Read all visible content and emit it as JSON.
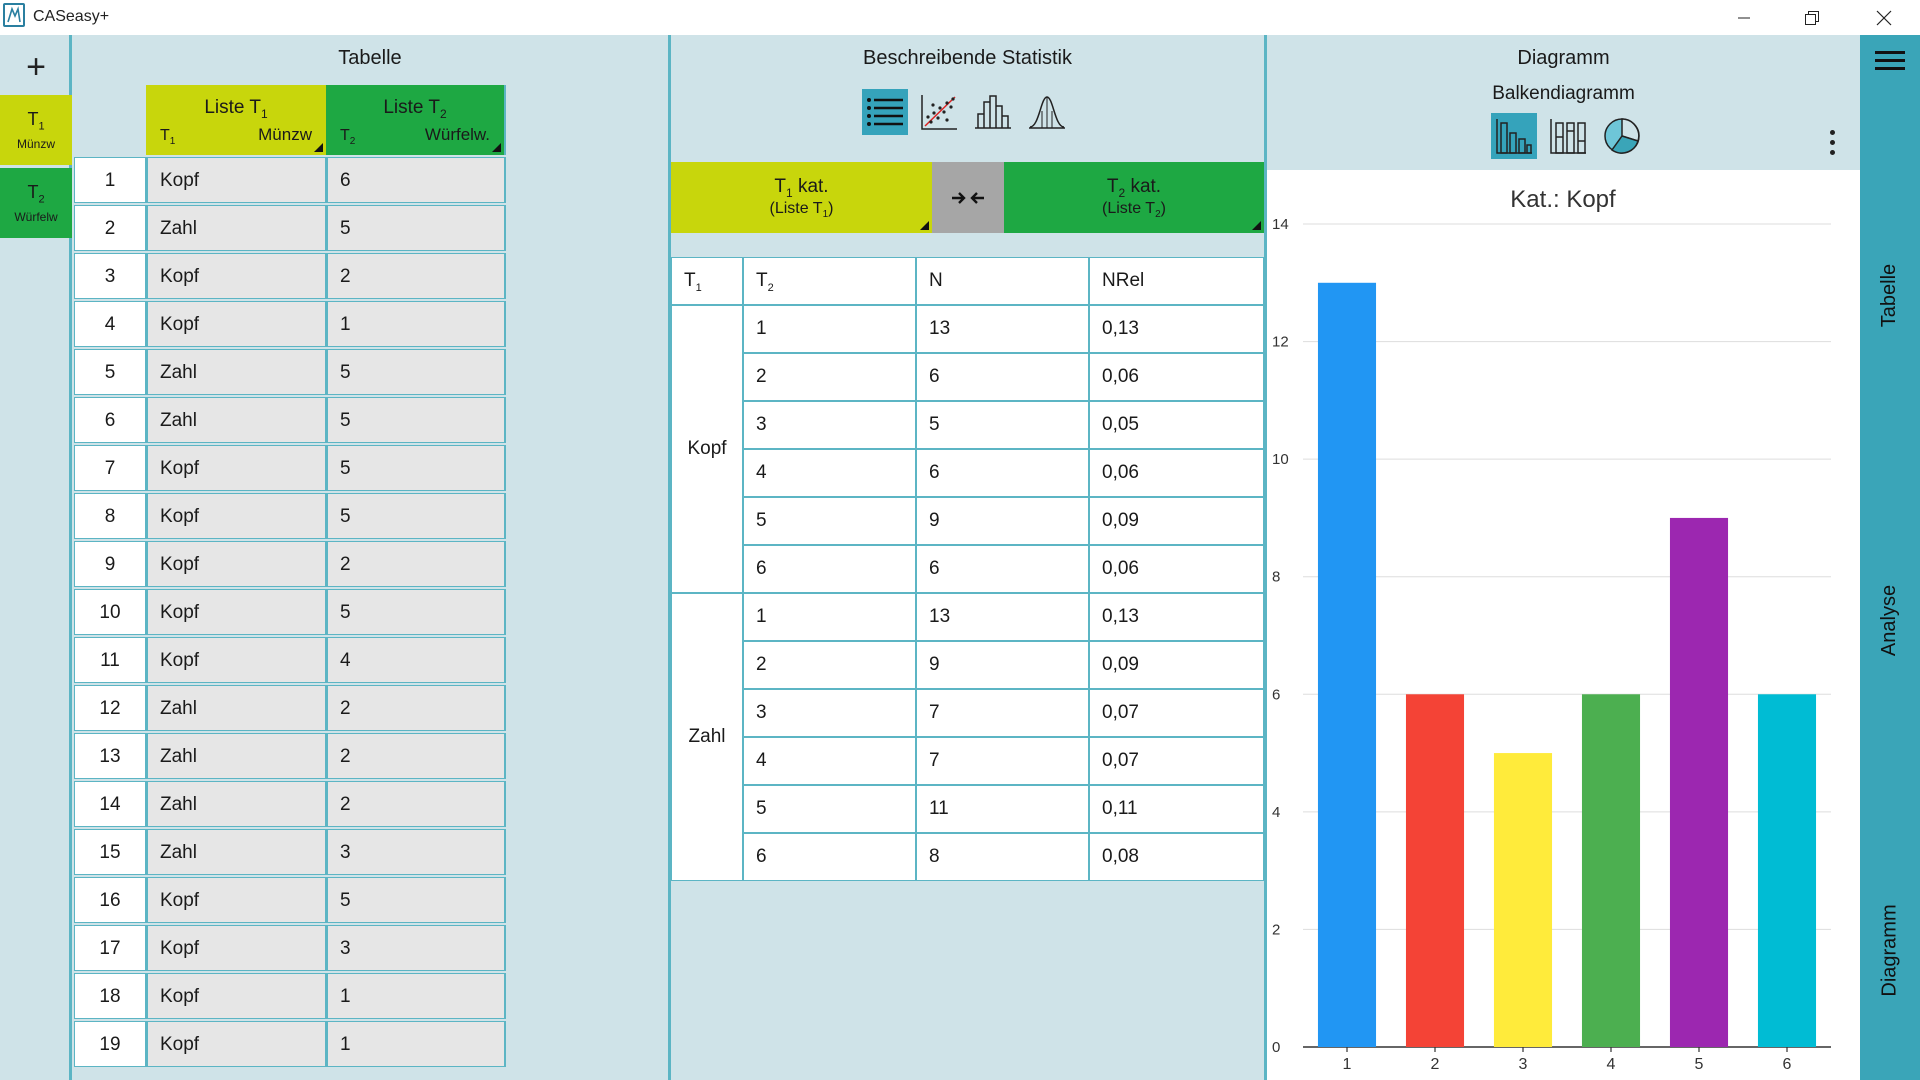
{
  "window": {
    "title": "CASeasy+"
  },
  "lists": {
    "t1": {
      "name": "T",
      "sub": "1",
      "caption": "Münzw"
    },
    "t2": {
      "name": "T",
      "sub": "2",
      "caption": "Würfelw"
    }
  },
  "tabelle": {
    "title": "Tabelle",
    "col1": {
      "title": "Liste T",
      "title_sub": "1",
      "var": "T",
      "var_sub": "1",
      "caption": "Münzw"
    },
    "col2": {
      "title": "Liste T",
      "title_sub": "2",
      "var": "T",
      "var_sub": "2",
      "caption": "Würfelw."
    },
    "rows": [
      [
        "1",
        "Kopf",
        "6"
      ],
      [
        "2",
        "Zahl",
        "5"
      ],
      [
        "3",
        "Kopf",
        "2"
      ],
      [
        "4",
        "Kopf",
        "1"
      ],
      [
        "5",
        "Zahl",
        "5"
      ],
      [
        "6",
        "Zahl",
        "5"
      ],
      [
        "7",
        "Kopf",
        "5"
      ],
      [
        "8",
        "Kopf",
        "5"
      ],
      [
        "9",
        "Kopf",
        "2"
      ],
      [
        "10",
        "Kopf",
        "5"
      ],
      [
        "11",
        "Kopf",
        "4"
      ],
      [
        "12",
        "Zahl",
        "2"
      ],
      [
        "13",
        "Zahl",
        "2"
      ],
      [
        "14",
        "Zahl",
        "2"
      ],
      [
        "15",
        "Zahl",
        "3"
      ],
      [
        "16",
        "Kopf",
        "5"
      ],
      [
        "17",
        "Kopf",
        "3"
      ],
      [
        "18",
        "Kopf",
        "1"
      ],
      [
        "19",
        "Kopf",
        "1"
      ]
    ]
  },
  "statistik": {
    "title": "Beschreibende Statistik",
    "tools": [
      "list-icon",
      "scatter-icon",
      "histogram-icon",
      "normal-curve-icon"
    ],
    "selector": {
      "left": {
        "var": "T",
        "var_sub": "1",
        "label": " kat.",
        "source": "(Liste T",
        "source_sub": "1",
        "source_end": ")"
      },
      "right": {
        "var": "T",
        "var_sub": "2",
        "label": " kat.",
        "source": "(Liste T",
        "source_sub": "2",
        "source_end": ")"
      }
    },
    "table": {
      "headers": {
        "c1": "T",
        "c1_sub": "1",
        "c2": "T",
        "c2_sub": "2",
        "c3": "N",
        "c4": "NRel"
      },
      "groups": [
        {
          "label": "Kopf",
          "rows": [
            [
              "1",
              "13",
              "0,13"
            ],
            [
              "2",
              "6",
              "0,06"
            ],
            [
              "3",
              "5",
              "0,05"
            ],
            [
              "4",
              "6",
              "0,06"
            ],
            [
              "5",
              "9",
              "0,09"
            ],
            [
              "6",
              "6",
              "0,06"
            ]
          ]
        },
        {
          "label": "Zahl",
          "rows": [
            [
              "1",
              "13",
              "0,13"
            ],
            [
              "2",
              "9",
              "0,09"
            ],
            [
              "3",
              "7",
              "0,07"
            ],
            [
              "4",
              "7",
              "0,07"
            ],
            [
              "5",
              "11",
              "0,11"
            ],
            [
              "6",
              "8",
              "0,08"
            ]
          ]
        }
      ]
    }
  },
  "diagramm": {
    "title": "Diagramm",
    "subtitle": "Balkendiagramm",
    "chart_types": [
      "bar-chart-icon",
      "stacked-bar-icon",
      "pie-chart-icon"
    ],
    "active_chart_type": "bar-chart-icon"
  },
  "chart_data": {
    "type": "bar",
    "title": "Kat.: Kopf",
    "categories": [
      "1",
      "2",
      "3",
      "4",
      "5",
      "6"
    ],
    "values": [
      13,
      6,
      5,
      6,
      9,
      6
    ],
    "colors": [
      "#2196f3",
      "#f44336",
      "#ffeb3b",
      "#4caf50",
      "#9c27b0",
      "#00bcd4"
    ],
    "ylim": [
      0,
      14
    ],
    "yticks": [
      0,
      2,
      4,
      6,
      8,
      10,
      12,
      14
    ],
    "xlabel": "",
    "ylabel": "",
    "grid": true
  },
  "nav": {
    "items": [
      "Tabelle",
      "Analyse",
      "Diagramm"
    ]
  },
  "colors": {
    "t1": "#c8d60c",
    "t2": "#1ea843",
    "accent": "#3aa5b8",
    "panel_bg": "#cfe3e8"
  }
}
